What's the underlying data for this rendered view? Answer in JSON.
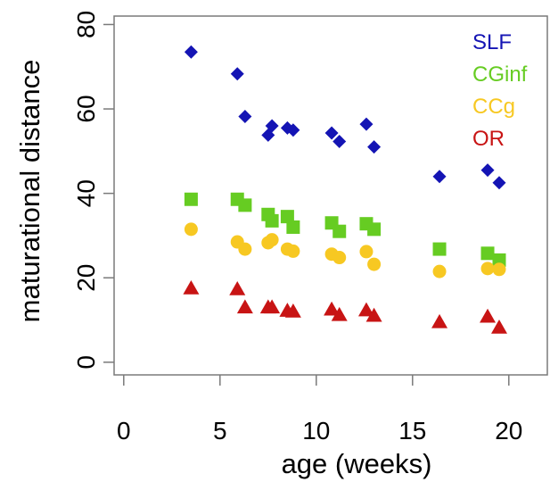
{
  "chart_data": {
    "type": "scatter",
    "title": "",
    "xlabel": "age (weeks)",
    "ylabel": "maturational distance",
    "xlim": [
      -0.5,
      22
    ],
    "ylim": [
      -3,
      82
    ],
    "xticks": [
      0,
      5,
      10,
      15,
      20
    ],
    "yticks": [
      0,
      20,
      40,
      60,
      80
    ],
    "grid": false,
    "legend": {
      "placement": "top-right"
    },
    "x": [
      3.5,
      5.9,
      6.3,
      7.5,
      7.7,
      8.5,
      8.8,
      10.8,
      11.2,
      12.6,
      13.0,
      16.4,
      18.9,
      19.5
    ],
    "series": [
      {
        "name": "SLF",
        "marker": "diamond",
        "color": "#1414b4",
        "values": [
          73.5,
          68.3,
          58.2,
          53.8,
          56.0,
          55.5,
          55.0,
          54.3,
          52.3,
          56.4,
          51.0,
          44.0,
          45.5,
          42.5
        ]
      },
      {
        "name": "CGinf",
        "marker": "square",
        "color": "#66cc22",
        "values": [
          38.6,
          38.6,
          37.2,
          35.0,
          33.5,
          34.5,
          32.0,
          33.0,
          31.0,
          32.8,
          31.5,
          26.8,
          25.8,
          24.2
        ]
      },
      {
        "name": "CCg",
        "marker": "circle",
        "color": "#f7c822",
        "values": [
          31.5,
          28.5,
          26.8,
          28.3,
          29.0,
          26.8,
          26.3,
          25.6,
          24.8,
          26.2,
          23.2,
          21.5,
          22.2,
          22.0
        ]
      },
      {
        "name": "OR",
        "marker": "triangle",
        "color": "#c81414",
        "values": [
          17.5,
          17.3,
          13.0,
          13.0,
          13.0,
          12.2,
          12.0,
          12.5,
          11.2,
          12.3,
          11.0,
          9.5,
          10.8,
          8.2
        ]
      }
    ]
  }
}
